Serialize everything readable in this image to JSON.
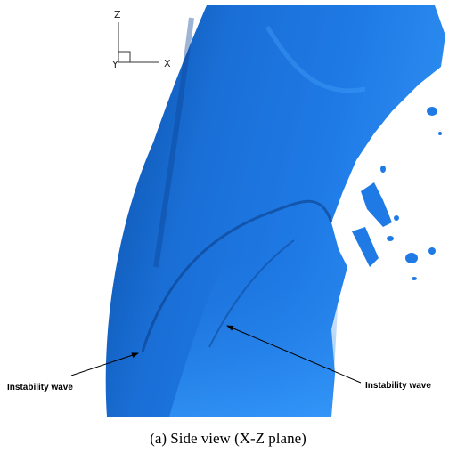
{
  "axes": {
    "z": "Z",
    "y": "Y",
    "x": "X"
  },
  "annotations": [
    "Instability wave",
    "Instability wave"
  ],
  "caption": "(a) Side view (X-Z plane)"
}
